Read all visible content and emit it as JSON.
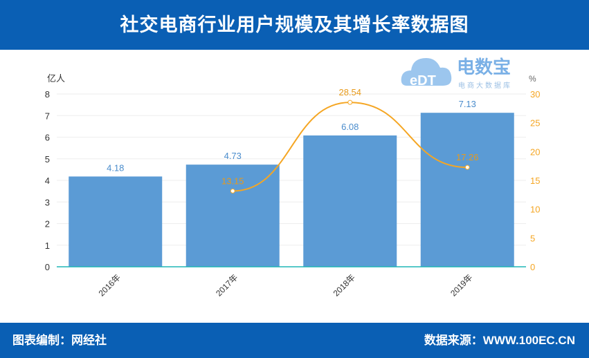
{
  "header": {
    "title": "社交电商行业用户规模及其增长率数据图"
  },
  "footer": {
    "left": "图表编制：网经社",
    "right": "数据来源：WWW.100EC.CN"
  },
  "logo": {
    "text": "电数宝",
    "sub": "电商大数据库",
    "mark": "eDT"
  },
  "chart_data": {
    "type": "bar+line",
    "categories": [
      "2016年",
      "2017年",
      "2018年",
      "2019年"
    ],
    "series": [
      {
        "type": "bar",
        "axis": "left",
        "values": [
          4.18,
          4.73,
          6.08,
          7.13
        ],
        "labels": [
          "4.18",
          "4.73",
          "6.08",
          "7.13"
        ],
        "color": "#5b9bd5"
      },
      {
        "type": "line",
        "axis": "right",
        "values": [
          null,
          13.15,
          28.54,
          17.26
        ],
        "labels": [
          "",
          "13.15",
          "28.54",
          "17.26"
        ],
        "color": "#f5a623"
      }
    ],
    "ylabel_left": "亿人",
    "ylabel_right": "%",
    "ylim_left": [
      0,
      8
    ],
    "yticks_left": [
      "0",
      "1",
      "2",
      "3",
      "4",
      "5",
      "6",
      "7",
      "8"
    ],
    "ylim_right": [
      0,
      30
    ],
    "yticks_right": [
      "0",
      "5",
      "10",
      "15",
      "20",
      "25",
      "30"
    ],
    "grid": true,
    "legend": "none"
  }
}
